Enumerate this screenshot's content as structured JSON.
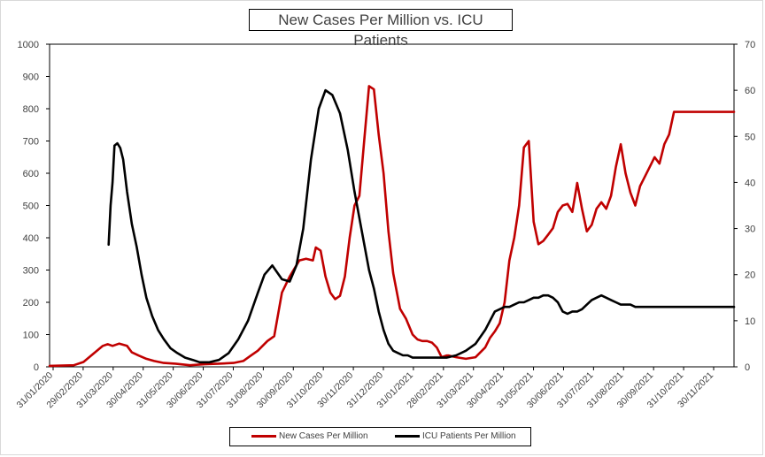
{
  "chart_data": {
    "type": "line",
    "title": "New Cases Per Million vs. ICU Patients",
    "xlabel": "",
    "ylabel": "",
    "x_tick_labels": [
      "31/01/2020",
      "29/02/2020",
      "31/03/2020",
      "30/04/2020",
      "31/05/2020",
      "30/06/2020",
      "31/07/2020",
      "31/08/2020",
      "30/09/2020",
      "31/10/2020",
      "30/11/2020",
      "31/12/2020",
      "31/01/2021",
      "28/02/2021",
      "31/03/2021",
      "30/04/2021",
      "31/05/2021",
      "30/06/2021",
      "31/07/2021",
      "31/08/2021",
      "30/09/2021",
      "31/10/2021",
      "30/11/2021"
    ],
    "x_range_days": [
      0,
      707
    ],
    "ylim_left": [
      0,
      1000
    ],
    "y_ticks_left": [
      "0",
      "100",
      "200",
      "300",
      "400",
      "500",
      "600",
      "700",
      "800",
      "900",
      "1000"
    ],
    "ylim_right": [
      0,
      70
    ],
    "y_ticks_right": [
      "0",
      "10",
      "20",
      "30",
      "40",
      "50",
      "60",
      "70"
    ],
    "legend_position": "bottom",
    "series": [
      {
        "name": "New Cases Per Million",
        "axis": "left",
        "color": "#c00000",
        "x_days": [
          0,
          25,
          35,
          45,
          55,
          60,
          65,
          72,
          80,
          85,
          92,
          100,
          108,
          118,
          130,
          145,
          160,
          175,
          190,
          200,
          208,
          215,
          225,
          232,
          240,
          248,
          258,
          265,
          272,
          275,
          280,
          285,
          290,
          295,
          300,
          305,
          310,
          315,
          320,
          325,
          330,
          335,
          340,
          345,
          350,
          355,
          362,
          368,
          375,
          380,
          385,
          390,
          395,
          400,
          405,
          410,
          412,
          420,
          430,
          440,
          450,
          455,
          460,
          465,
          470,
          475,
          480,
          485,
          490,
          495,
          500,
          505,
          510,
          515,
          520,
          525,
          530,
          535,
          540,
          545,
          550,
          555,
          560,
          565,
          570,
          575,
          580,
          585,
          590,
          595,
          600,
          605,
          610,
          615,
          620,
          625,
          630,
          635,
          640,
          645,
          650,
          655,
          660,
          665,
          670,
          675,
          680,
          685,
          690,
          695,
          700,
          705,
          707
        ],
        "values": [
          3,
          5,
          15,
          40,
          65,
          70,
          65,
          72,
          65,
          45,
          35,
          25,
          18,
          12,
          10,
          5,
          8,
          10,
          12,
          18,
          35,
          50,
          80,
          95,
          230,
          280,
          330,
          335,
          330,
          370,
          360,
          280,
          230,
          210,
          220,
          280,
          400,
          500,
          530,
          700,
          870,
          860,
          720,
          600,
          420,
          290,
          180,
          150,
          100,
          85,
          80,
          80,
          75,
          60,
          30,
          35,
          35,
          30,
          25,
          30,
          60,
          90,
          110,
          135,
          200,
          330,
          400,
          500,
          680,
          700,
          450,
          380,
          390,
          410,
          430,
          480,
          500,
          505,
          480,
          570,
          490,
          420,
          440,
          490,
          510,
          490,
          530,
          620,
          690,
          600,
          540,
          500,
          560,
          590,
          620,
          650,
          630,
          690,
          720,
          790,
          790,
          790,
          790,
          790,
          790,
          790,
          790,
          790,
          790,
          790,
          790,
          790,
          790
        ],
        "_note": "values extend to end of x range"
      },
      {
        "name": "ICU Patients Per Million",
        "axis": "right",
        "color": "#000000",
        "x_days": [
          61,
          63,
          65,
          67,
          70,
          73,
          76,
          80,
          85,
          90,
          95,
          100,
          106,
          112,
          118,
          125,
          132,
          140,
          148,
          155,
          165,
          175,
          185,
          195,
          205,
          215,
          222,
          230,
          240,
          248,
          255,
          262,
          270,
          278,
          285,
          292,
          300,
          308,
          315,
          322,
          330,
          335,
          340,
          345,
          350,
          355,
          360,
          365,
          370,
          375,
          380,
          385,
          390,
          395,
          400,
          405,
          410,
          420,
          430,
          440,
          450,
          460,
          470,
          475,
          480,
          485,
          490,
          495,
          500,
          505,
          510,
          515,
          520,
          525,
          530,
          535,
          540,
          545,
          550,
          555,
          560,
          565,
          570,
          575,
          580,
          585,
          590,
          595,
          600,
          605,
          610,
          615,
          620,
          625,
          630,
          635,
          640,
          645,
          650,
          655,
          660,
          665,
          670,
          675,
          680,
          685,
          690,
          695,
          700,
          705,
          707
        ],
        "values": [
          26.5,
          35,
          40,
          48,
          48.5,
          47.5,
          45,
          38,
          31,
          26,
          20,
          15,
          11,
          8,
          6,
          4,
          3,
          2,
          1.5,
          1,
          1,
          1.5,
          3,
          6,
          10,
          16,
          20,
          22,
          19,
          18.5,
          22,
          30,
          45,
          56,
          60,
          59,
          55,
          47,
          38,
          30,
          21,
          17,
          12,
          8,
          5,
          3.5,
          3,
          2.5,
          2.5,
          2,
          2,
          2,
          2,
          2,
          2,
          2,
          2,
          2.5,
          3.5,
          5,
          8,
          12,
          13,
          13,
          13.5,
          14,
          14,
          14.5,
          15,
          15,
          15.5,
          15.5,
          15,
          14,
          12,
          11.5,
          12,
          12,
          12.5,
          13.5,
          14.5,
          15,
          15.5,
          15,
          14.5,
          14,
          13.5,
          13.5,
          13.5,
          13,
          13,
          13,
          13,
          13,
          13,
          13,
          13,
          13,
          13,
          13,
          13,
          13,
          13,
          13,
          13,
          13,
          13,
          13,
          13,
          13,
          13
        ]
      }
    ]
  }
}
